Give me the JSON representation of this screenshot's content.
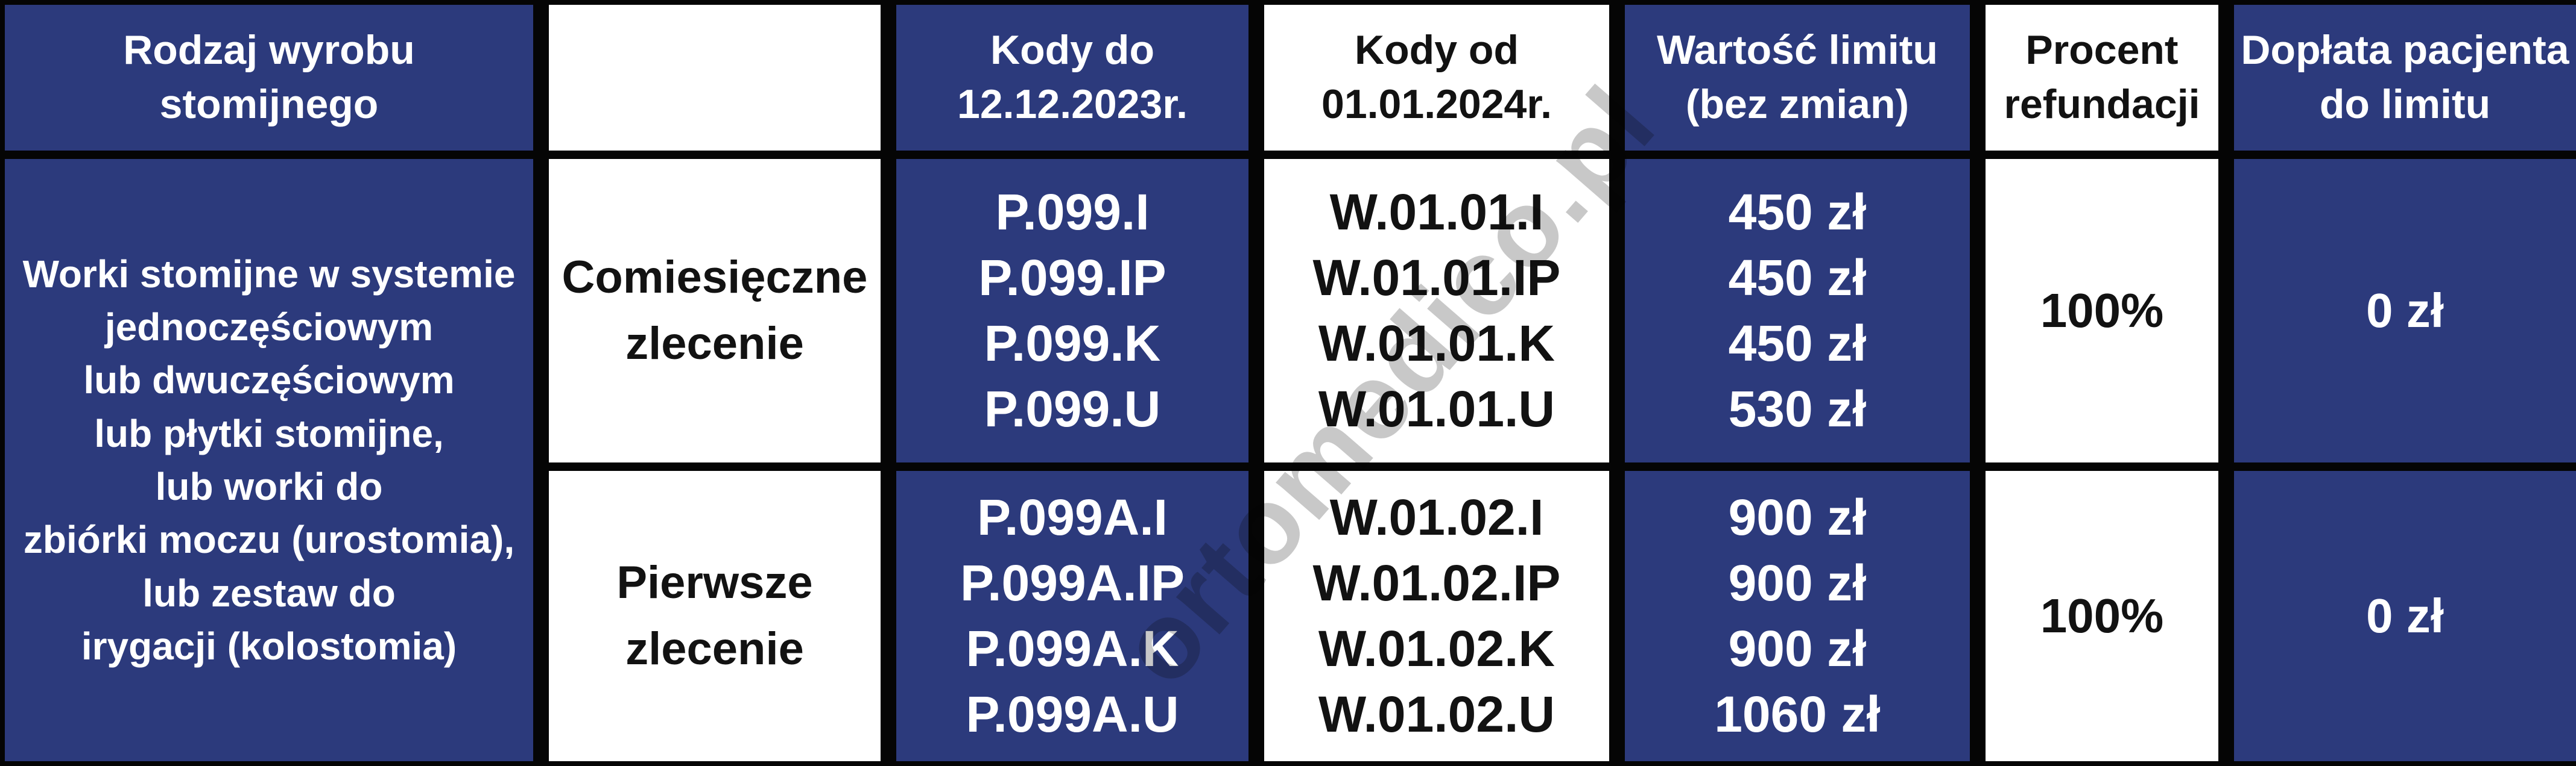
{
  "table": {
    "colors": {
      "accent_blue": "#2C3A7C",
      "border_black": "#050505",
      "cell_white": "#FFFFFF",
      "watermark_gray": "#9A9A9A"
    },
    "watermark_text": "ortomedico.pl",
    "header": {
      "product_type": [
        "Rodzaj wyrobu",
        "stomijnego"
      ],
      "order_type": [],
      "codes_old": [
        "Kody do",
        "12.12.2023r."
      ],
      "codes_new": [
        "Kody od",
        "01.01.2024r."
      ],
      "limit_value": [
        "Wartość limitu",
        "(bez zmian)"
      ],
      "refund_percent": [
        "Procent",
        "refundacji"
      ],
      "patient_payment": [
        "Dopłata pacjenta",
        "do limitu"
      ]
    },
    "product_type_lines": [
      "Worki stomijne w systemie",
      "jednoczęściowym",
      "lub dwuczęściowym",
      "lub płytki stomijne,",
      "lub worki do",
      "zbiórki moczu (urostomia),",
      "lub zestaw do",
      "irygacji (kolostomia)"
    ],
    "rows": [
      {
        "order_type": [
          "Comiesięczne",
          "zlecenie"
        ],
        "codes_old": [
          "P.099.I",
          "P.099.IP",
          "P.099.K",
          "P.099.U"
        ],
        "codes_new": [
          "W.01.01.I",
          "W.01.01.IP",
          "W.01.01.K",
          "W.01.01.U"
        ],
        "limit_values": [
          "450 zł",
          "450 zł",
          "450 zł",
          "530 zł"
        ],
        "refund_percent": "100%",
        "patient_payment": "0 zł"
      },
      {
        "order_type": [
          "Pierwsze",
          "zlecenie"
        ],
        "codes_old": [
          "P.099A.I",
          "P.099A.IP",
          "P.099A.K",
          "P.099A.U"
        ],
        "codes_new": [
          "W.01.02.I",
          "W.01.02.IP",
          "W.01.02.K",
          "W.01.02.U"
        ],
        "limit_values": [
          "900 zł",
          "900 zł",
          "900 zł",
          "1060 zł"
        ],
        "refund_percent": "100%",
        "patient_payment": "0 zł"
      }
    ]
  }
}
